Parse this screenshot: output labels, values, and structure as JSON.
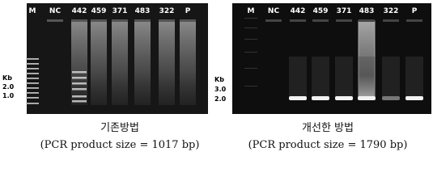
{
  "panels": [
    {
      "lanes": [
        "M",
        "NC",
        "442",
        "459",
        "371",
        "483",
        "322",
        "P"
      ],
      "size_labels": [
        "Kb",
        "2.0",
        "1.0"
      ],
      "caption": "기존방법",
      "subcaption": "(PCR product size = 1017 bp)"
    },
    {
      "lanes": [
        "M",
        "NC",
        "442",
        "459",
        "371",
        "483",
        "322",
        "P"
      ],
      "size_labels": [
        "Kb",
        "3.0",
        "2.0"
      ],
      "caption": "개선한 방법",
      "subcaption": "(PCR product size = 1790 bp)"
    }
  ]
}
